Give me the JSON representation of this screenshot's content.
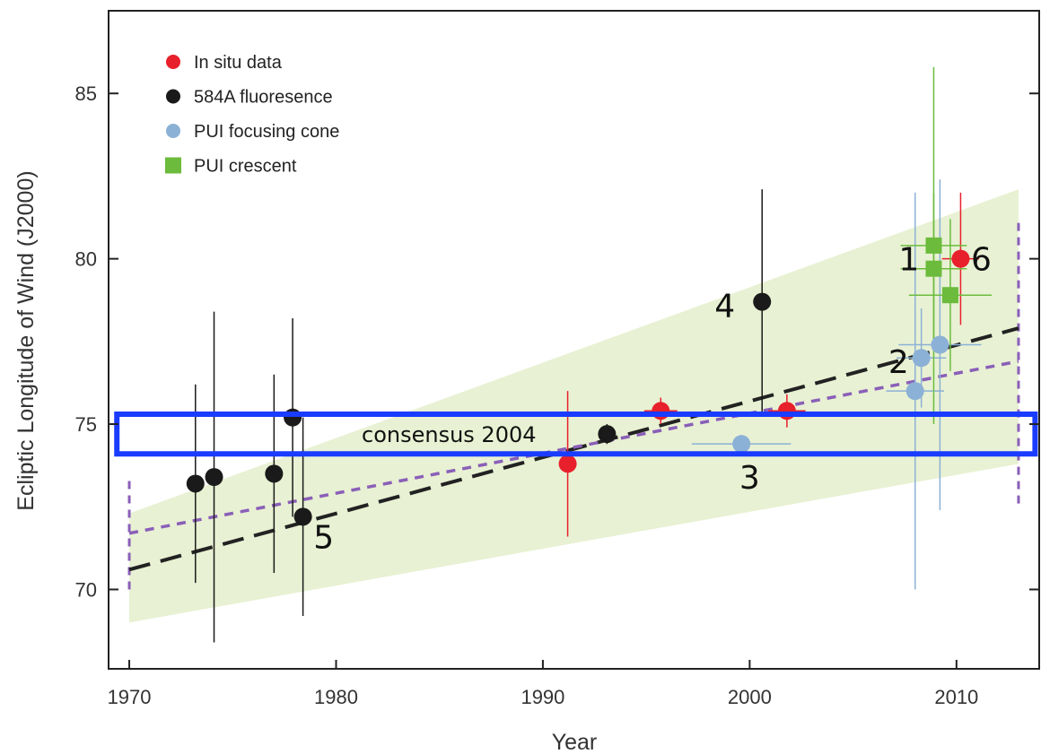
{
  "chart_data": {
    "type": "scatter",
    "title": "",
    "xlabel": "Year",
    "ylabel": "Ecliptic Longitude of Wind (J2000)",
    "xlim": [
      1969,
      2014
    ],
    "ylim": [
      67.6,
      87.5
    ],
    "x_ticks": [
      1970,
      1980,
      1990,
      2000,
      2010
    ],
    "y_ticks": [
      70,
      75,
      80,
      85
    ],
    "grid": false,
    "legend_position": "top-left",
    "colors": {
      "in_situ": "#e8202c",
      "fluorescence": "#1a1a1a",
      "focusing_cone": "#8cb1d6",
      "crescent": "#6cbb3c",
      "band": "#e8f1d3",
      "black_fit": "#222222",
      "purple_fit": "#8a5fb8",
      "highlight_box": "#1a3cff"
    },
    "series": [
      {
        "name": "In situ data",
        "marker": "circle",
        "color": "#e8202c",
        "points": [
          {
            "x": 1991.2,
            "y": 73.8,
            "yerr": 2.2,
            "xerr": 0
          },
          {
            "x": 1995.7,
            "y": 75.4,
            "yerr": 0.4,
            "xerr": 0.8
          },
          {
            "x": 2001.8,
            "y": 75.4,
            "yerr": 0.5,
            "xerr": 0.9
          },
          {
            "x": 2010.2,
            "y": 80.0,
            "yerr": 2.0,
            "xerr": 0.9
          }
        ]
      },
      {
        "name": "584A fluoresence",
        "marker": "circle",
        "color": "#1a1a1a",
        "points": [
          {
            "x": 1973.2,
            "y": 73.2,
            "yerr": 3.0,
            "xerr": 0
          },
          {
            "x": 1974.1,
            "y": 73.4,
            "yerr": 5.0,
            "xerr": 0
          },
          {
            "x": 1977.0,
            "y": 73.5,
            "yerr": 3.0,
            "xerr": 0
          },
          {
            "x": 1977.9,
            "y": 75.2,
            "yerr": 3.0,
            "xerr": 0
          },
          {
            "x": 1978.4,
            "y": 72.2,
            "yerr": 3.0,
            "xerr": 0
          },
          {
            "x": 1993.1,
            "y": 74.7,
            "yerr": 0.3,
            "xerr": 0
          },
          {
            "x": 2000.6,
            "y": 78.7,
            "yerr": 3.4,
            "xerr": 0
          }
        ]
      },
      {
        "name": "PUI focusing cone",
        "marker": "circle",
        "color": "#8cb1d6",
        "points": [
          {
            "x": 1999.6,
            "y": 74.4,
            "yerr": 0.2,
            "xerr": 2.4
          },
          {
            "x": 2008.0,
            "y": 76.0,
            "yerr": 6.0,
            "xerr": 1.4
          },
          {
            "x": 2008.3,
            "y": 77.0,
            "yerr": 1.5,
            "xerr": 1.2
          },
          {
            "x": 2009.2,
            "y": 77.4,
            "yerr": 5.0,
            "xerr": 2.0
          }
        ]
      },
      {
        "name": "PUI crescent",
        "marker": "square",
        "color": "#6cbb3c",
        "points": [
          {
            "x": 2008.9,
            "y": 80.4,
            "yerr": 5.4,
            "xerr": 1.6
          },
          {
            "x": 2008.9,
            "y": 79.7,
            "yerr": 2.3,
            "xerr": 1.6
          },
          {
            "x": 2009.7,
            "y": 78.9,
            "yerr": 2.3,
            "xerr": 2.0
          }
        ]
      }
    ],
    "fit_lines": [
      {
        "style": "long-dash",
        "color": "#222222",
        "x": [
          1970,
          2013
        ],
        "y": [
          70.6,
          77.9
        ]
      },
      {
        "style": "short-dash",
        "color": "#8a5fb8",
        "x": [
          1970,
          2013
        ],
        "y": [
          71.7,
          76.9
        ]
      }
    ],
    "uncertainty_band": {
      "x_left": 1970,
      "x_right": 2013,
      "upper": [
        72.3,
        82.1
      ],
      "lower": [
        69.0,
        73.8
      ]
    },
    "vertical_dashed_lines": [
      {
        "x": 1970,
        "y_range": [
          70.0,
          73.4
        ]
      },
      {
        "x": 2013,
        "y_range": [
          72.6,
          81.2
        ]
      }
    ],
    "highlight_box": {
      "label": "consensus 2004",
      "x_range": [
        1969.4,
        2013.8
      ],
      "y_range": [
        74.1,
        75.3
      ]
    },
    "annotations": [
      {
        "text": "1",
        "x": 2007.7,
        "y": 80.0
      },
      {
        "text": "2",
        "x": 2007.2,
        "y": 76.9
      },
      {
        "text": "3",
        "x": 2000.0,
        "y": 73.4
      },
      {
        "text": "4",
        "x": 1998.8,
        "y": 78.6
      },
      {
        "text": "5",
        "x": 1979.4,
        "y": 71.6
      },
      {
        "text": "6",
        "x": 2011.2,
        "y": 80.0
      }
    ]
  }
}
